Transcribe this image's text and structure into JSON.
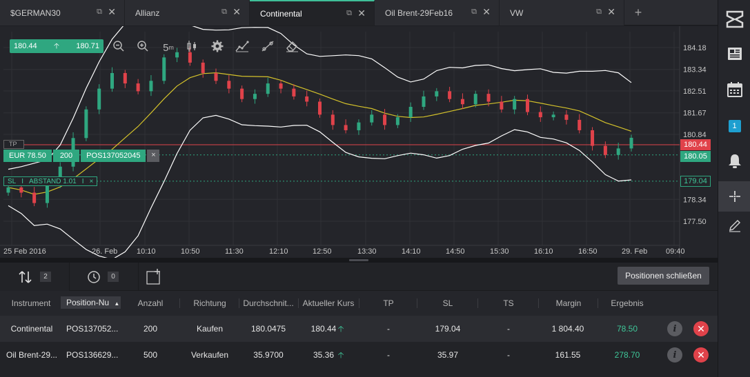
{
  "tabs": [
    {
      "label": "$GERMAN30",
      "active": false
    },
    {
      "label": "Allianz",
      "active": false
    },
    {
      "label": "Continental",
      "active": true
    },
    {
      "label": "Oil Brent-29Feb16",
      "active": false
    },
    {
      "label": "VW",
      "active": false
    }
  ],
  "tab_add": "+",
  "sidebar": {
    "notification_count": "1"
  },
  "chart": {
    "bid": "180.44",
    "ask": "180.71",
    "timeframe": "5",
    "timeframe_unit": "m",
    "tp_label": "TP",
    "position": {
      "value": "EUR 78.50",
      "quantity": "200",
      "id": "POS137052045",
      "close": "×"
    },
    "sl": {
      "label": "SL",
      "sep": "I",
      "distance": "ABSTAND 1.01",
      "sep2": "I",
      "close": "×"
    },
    "current_price_tag": "180.44",
    "entry_price_tag": "180.05",
    "sl_price_tag": "179.04",
    "y_ticks": [
      "184.18",
      "183.34",
      "182.51",
      "181.67",
      "180.84",
      "178.34",
      "177.50"
    ],
    "x_ticks": [
      "25 Feb 2016",
      "26. Feb",
      "10:10",
      "10:50",
      "11:30",
      "12:10",
      "12:50",
      "13:30",
      "14:10",
      "14:50",
      "15:30",
      "16:10",
      "16:50",
      "29. Feb",
      "09:40"
    ]
  },
  "chart_data": {
    "type": "candlestick",
    "title": "Continental",
    "indicators": [
      "Bollinger Bands",
      "Moving Average"
    ],
    "colors": {
      "up": "#2fa780",
      "down": "#e0424a",
      "bands": "#ffffff",
      "ma": "#d4c22a",
      "tp_line": "#e0424a",
      "entry_line": "#2fa780"
    },
    "y_range": [
      177.0,
      185.0
    ],
    "reference_levels": {
      "current": 180.44,
      "entry": 180.05,
      "stop_loss": 179.04
    },
    "close": [
      178.8,
      178.6,
      178.2,
      178.9,
      179.6,
      180.7,
      181.8,
      182.6,
      183.2,
      182.8,
      182.5,
      182.9,
      183.8,
      184.0,
      183.6,
      183.2,
      182.9,
      182.6,
      182.2,
      182.4,
      182.8,
      182.6,
      182.3,
      182.1,
      181.6,
      181.2,
      181.0,
      181.3,
      181.6,
      181.2,
      181.5,
      181.9,
      182.3,
      182.5,
      182.2,
      182.0,
      182.4,
      182.1,
      181.8,
      182.2,
      181.7,
      181.5,
      181.6,
      181.4,
      181.0,
      180.4,
      180.05,
      180.3,
      180.71
    ]
  },
  "panel": {
    "positions_count": "2",
    "orders_count": "0",
    "close_all_label": "Positionen schließen",
    "headers": [
      "Instrument",
      "Position-Nu",
      "Anzahl",
      "Richtung",
      "Durchschnit...",
      "Aktueller Kurs",
      "TP",
      "SL",
      "TS",
      "Margin",
      "Ergebnis"
    ],
    "rows": [
      {
        "instrument": "Continental",
        "position": "POS137052...",
        "quantity": "200",
        "direction": "Kaufen",
        "avg": "180.0475",
        "current": "180.44",
        "tp": "-",
        "sl": "179.04",
        "ts": "-",
        "margin": "1 804.40",
        "result": "78.50"
      },
      {
        "instrument": "Oil Brent-29...",
        "position": "POS136629...",
        "quantity": "500",
        "direction": "Verkaufen",
        "avg": "35.9700",
        "current": "35.36",
        "tp": "-",
        "sl": "35.97",
        "ts": "-",
        "margin": "161.55",
        "result": "278.70"
      }
    ]
  }
}
